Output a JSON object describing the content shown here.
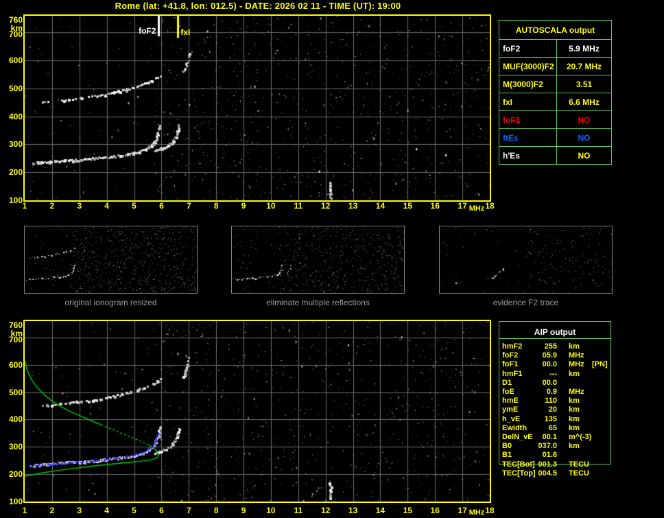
{
  "title": "Rome (lat: +41.8, lon: 012.5) - DATE: 2026 02 11 - TIME (UT): 19:00",
  "colors": {
    "background": "#000000",
    "axis_yellow": "#ffff00",
    "table_border_green": "#5ecc5e",
    "grid_gray": "#6e6e6e",
    "trace_white": "#ffffff",
    "restored_trace_blue": "#2828ff",
    "profile_green": "#00cc00",
    "caption_gray": "#9c9c9c",
    "foF1_red": "#ff0000",
    "ftEs_blue": "#0066ff"
  },
  "autoscala_table": {
    "title": "AUTOSCALA output",
    "rows": [
      {
        "label": "foF2",
        "value": "5.9 MHz",
        "label_color": "#ffffff",
        "value_color": "#ffffff"
      },
      {
        "label": "MUF(3000)F2",
        "value": "20.7 MHz",
        "label_color": "#ffff00",
        "value_color": "#ffff00"
      },
      {
        "label": "M(3000)F2",
        "value": "3.51",
        "label_color": "#ffff00",
        "value_color": "#ffff00"
      },
      {
        "label": "fxI",
        "value": "6.6 MHz",
        "label_color": "#ffff00",
        "value_color": "#ffff00"
      },
      {
        "label": "foF1",
        "value": "NO",
        "label_color": "#ff0000",
        "value_color": "#ff0000"
      },
      {
        "label": "ftEs",
        "value": "NO",
        "label_color": "#0066ff",
        "value_color": "#0066ff"
      },
      {
        "label": "h'Es",
        "value": "NO",
        "label_color": "#ffffff",
        "value_color": "#ffff00"
      }
    ]
  },
  "aip_table": {
    "title": "AIP output",
    "rows": [
      {
        "label": "hmF2",
        "value": "255",
        "unit": "km",
        "extra": ""
      },
      {
        "label": "foF2",
        "value": "05.9",
        "unit": "MHz",
        "extra": ""
      },
      {
        "label": "foF1",
        "value": "00.0",
        "unit": "MHz",
        "extra": "[PN]"
      },
      {
        "label": "hmF1",
        "value": "---",
        "unit": "km",
        "extra": ""
      },
      {
        "label": "D1",
        "value": "00.0",
        "unit": "",
        "extra": ""
      },
      {
        "label": "foE",
        "value": "0.9",
        "unit": "MHz",
        "extra": ""
      },
      {
        "label": "hmE",
        "value": "110",
        "unit": "km",
        "extra": ""
      },
      {
        "label": "ymE",
        "value": "20",
        "unit": "km",
        "extra": ""
      },
      {
        "label": "h_vE",
        "value": "135",
        "unit": "km",
        "extra": ""
      },
      {
        "label": "Ewidth",
        "value": "65",
        "unit": "km",
        "extra": ""
      },
      {
        "label": "DelN_vE",
        "value": "00.1",
        "unit": "m^(-3)",
        "extra": ""
      },
      {
        "label": "B0",
        "value": "037.0",
        "unit": "km",
        "extra": ""
      },
      {
        "label": "B1",
        "value": "01.6",
        "unit": "",
        "extra": ""
      },
      {
        "label": "TEC[Bot]",
        "value": "001.3",
        "unit": "TECU",
        "extra": ""
      },
      {
        "label": "TEC[Top]",
        "value": "004.5",
        "unit": "TECU",
        "extra": ""
      }
    ]
  },
  "thumbnails": [
    {
      "caption": "original ionogram resized"
    },
    {
      "caption": "eliminate multiple reflections"
    },
    {
      "caption": "evidence F2 trace"
    }
  ],
  "chart_data": {
    "type": "scatter",
    "plots": [
      {
        "id": "ionogram_top",
        "xlabel": "MHz",
        "ylabel": "km",
        "xlim": [
          1,
          18
        ],
        "ylim": [
          100,
          760
        ],
        "x_ticks": [
          1,
          2,
          3,
          4,
          5,
          6,
          7,
          8,
          9,
          10,
          11,
          12,
          13,
          14,
          15,
          16,
          17,
          18
        ],
        "y_ticks": [
          760,
          700,
          600,
          500,
          400,
          300,
          200,
          100
        ],
        "grid": true,
        "markers": [
          {
            "label": "foF2",
            "x_mhz": 5.9,
            "color": "#ffffff"
          },
          {
            "label": "fxI",
            "x_mhz": 6.6,
            "color": "#ffff00"
          }
        ],
        "series": [
          "f2_o_trace",
          "f2_x_trace",
          "second_hop",
          "second_hop_x",
          "interference_12mhz"
        ]
      },
      {
        "id": "ionogram_bottom",
        "xlabel": "MHz",
        "ylabel": "km",
        "xlim": [
          1,
          18
        ],
        "ylim": [
          100,
          760
        ],
        "x_ticks": [
          1,
          2,
          3,
          4,
          5,
          6,
          7,
          8,
          9,
          10,
          11,
          12,
          13,
          14,
          15,
          16,
          17,
          18
        ],
        "y_ticks": [
          760,
          700,
          600,
          500,
          400,
          300,
          200,
          100
        ],
        "grid": true,
        "markers": [],
        "series": [
          "f2_o_trace",
          "f2_x_trace",
          "second_hop",
          "second_hop_x",
          "interference_12mhz",
          "profile_topside_solid",
          "profile_topside_dashed",
          "profile_bottomside",
          "restored_trace"
        ]
      }
    ],
    "series": {
      "f2_o_trace": {
        "name": "F2 O-mode trace",
        "style": "trace",
        "color": "#ffffff",
        "points": [
          [
            1.2,
            236
          ],
          [
            1.5,
            238
          ],
          [
            1.8,
            240
          ],
          [
            2.1,
            242
          ],
          [
            2.4,
            244
          ],
          [
            2.7,
            246
          ],
          [
            3.0,
            248
          ],
          [
            3.3,
            251
          ],
          [
            3.6,
            253
          ],
          [
            3.9,
            256
          ],
          [
            4.2,
            259
          ],
          [
            4.5,
            263
          ],
          [
            4.8,
            267
          ],
          [
            5.0,
            271
          ],
          [
            5.2,
            277
          ],
          [
            5.4,
            285
          ],
          [
            5.55,
            294
          ],
          [
            5.68,
            305
          ],
          [
            5.78,
            320
          ],
          [
            5.84,
            338
          ],
          [
            5.88,
            358
          ],
          [
            5.9,
            375
          ]
        ]
      },
      "f2_x_trace": {
        "name": "F2 X-mode trace",
        "style": "trace",
        "color": "#ffffff",
        "points": [
          [
            5.72,
            280
          ],
          [
            5.95,
            287
          ],
          [
            6.15,
            294
          ],
          [
            6.3,
            303
          ],
          [
            6.4,
            314
          ],
          [
            6.5,
            330
          ],
          [
            6.57,
            350
          ],
          [
            6.62,
            372
          ]
        ]
      },
      "second_hop": {
        "name": "F2 second hop",
        "style": "trace_sparse",
        "color": "#ffffff",
        "points": [
          [
            1.55,
            452
          ],
          [
            1.85,
            455
          ],
          [
            2.15,
            458
          ],
          [
            2.45,
            461
          ],
          [
            2.75,
            464
          ],
          [
            3.05,
            468
          ],
          [
            3.35,
            472
          ],
          [
            3.65,
            477
          ],
          [
            3.95,
            482
          ],
          [
            4.25,
            488
          ],
          [
            4.55,
            495
          ],
          [
            4.85,
            503
          ],
          [
            5.1,
            511
          ],
          [
            5.35,
            520
          ],
          [
            5.6,
            530
          ],
          [
            5.8,
            540
          ],
          [
            5.95,
            550
          ]
        ]
      },
      "second_hop_x": {
        "name": "second hop X asymptote",
        "style": "trace_sparse",
        "color": "#ffffff",
        "points": [
          [
            6.75,
            555
          ],
          [
            6.85,
            578
          ],
          [
            6.93,
            602
          ],
          [
            6.98,
            628
          ]
        ]
      },
      "interference_12mhz": {
        "name": "interference streak",
        "style": "trace",
        "color": "#ffffff",
        "points": [
          [
            12.15,
            112
          ],
          [
            12.15,
            168
          ]
        ]
      },
      "restored_trace": {
        "name": "restored trace",
        "style": "dots",
        "color": "#2828ff",
        "points": [
          [
            1.15,
            232
          ],
          [
            1.5,
            235
          ],
          [
            1.9,
            238
          ],
          [
            2.3,
            241
          ],
          [
            2.7,
            244
          ],
          [
            3.1,
            247
          ],
          [
            3.5,
            251
          ],
          [
            3.9,
            255
          ],
          [
            4.3,
            260
          ],
          [
            4.7,
            266
          ],
          [
            5.0,
            272
          ],
          [
            5.2,
            278
          ],
          [
            5.4,
            286
          ],
          [
            5.55,
            295
          ],
          [
            5.68,
            307
          ],
          [
            5.78,
            322
          ],
          [
            5.84,
            338
          ],
          [
            5.88,
            355
          ]
        ]
      },
      "profile_topside_solid": {
        "name": "electron density profile topside",
        "style": "line",
        "color": "#00cc00",
        "points": [
          [
            1.0,
            616
          ],
          [
            1.1,
            578
          ],
          [
            1.25,
            546
          ],
          [
            1.45,
            517
          ],
          [
            1.7,
            492
          ],
          [
            2.0,
            468
          ],
          [
            2.35,
            446
          ],
          [
            2.7,
            428
          ],
          [
            3.1,
            410
          ],
          [
            3.5,
            393
          ],
          [
            3.8,
            381
          ]
        ]
      },
      "profile_topside_dashed": {
        "name": "electron density profile topside dashed",
        "style": "line_dashed",
        "color": "#00cc00",
        "points": [
          [
            3.8,
            381
          ],
          [
            4.2,
            364
          ],
          [
            4.6,
            347
          ],
          [
            5.0,
            331
          ],
          [
            5.3,
            318
          ],
          [
            5.55,
            306
          ]
        ]
      },
      "profile_bottomside": {
        "name": "electron density profile peak and bottomside",
        "style": "line",
        "color": "#00cc00",
        "points": [
          [
            5.55,
            306
          ],
          [
            5.72,
            295
          ],
          [
            5.83,
            284
          ],
          [
            5.88,
            272
          ],
          [
            5.86,
            263
          ],
          [
            5.75,
            256
          ],
          [
            5.5,
            251
          ],
          [
            5.1,
            246
          ],
          [
            4.6,
            241
          ],
          [
            4.1,
            236
          ],
          [
            3.6,
            231
          ],
          [
            3.1,
            225
          ],
          [
            2.6,
            219
          ],
          [
            2.1,
            212
          ],
          [
            1.6,
            204
          ],
          [
            1.25,
            198
          ],
          [
            1.0,
            193
          ]
        ]
      },
      "evidence_trace": {
        "name": "evidence F2 trace segment",
        "style": "trace",
        "color": "#ffffff",
        "points": [
          [
            5.8,
            238
          ],
          [
            6.1,
            252
          ],
          [
            6.4,
            270
          ],
          [
            6.7,
            292
          ],
          [
            7.0,
            315
          ],
          [
            7.2,
            335
          ],
          [
            7.35,
            350
          ]
        ]
      },
      "evidence_cluster": {
        "name": "evidence cluster",
        "style": "trace",
        "color": "#ffffff",
        "points": [
          [
            2.6,
            205
          ],
          [
            2.78,
            208
          ]
        ]
      },
      "thumb_asymptote_tall": {
        "name": "thumb asymptote tall",
        "style": "trace_sparse",
        "color": "#ffffff",
        "points": [
          [
            6.3,
            300
          ],
          [
            6.45,
            330
          ],
          [
            6.55,
            370
          ],
          [
            6.65,
            420
          ],
          [
            6.75,
            470
          ],
          [
            6.85,
            520
          ],
          [
            6.9,
            560
          ]
        ]
      },
      "thumb_asymptote_short": {
        "name": "thumb asymptote short",
        "style": "trace_sparse",
        "color": "#ffffff",
        "points": [
          [
            6.3,
            280
          ],
          [
            6.5,
            300
          ],
          [
            6.65,
            330
          ],
          [
            6.75,
            360
          ],
          [
            6.8,
            385
          ]
        ]
      }
    },
    "thumbnail_series": [
      [
        "f2_o_trace",
        "second_hop",
        "thumb_asymptote_tall"
      ],
      [
        "f2_o_trace",
        "thumb_asymptote_short"
      ],
      [
        "evidence_trace",
        "evidence_cluster"
      ]
    ]
  }
}
